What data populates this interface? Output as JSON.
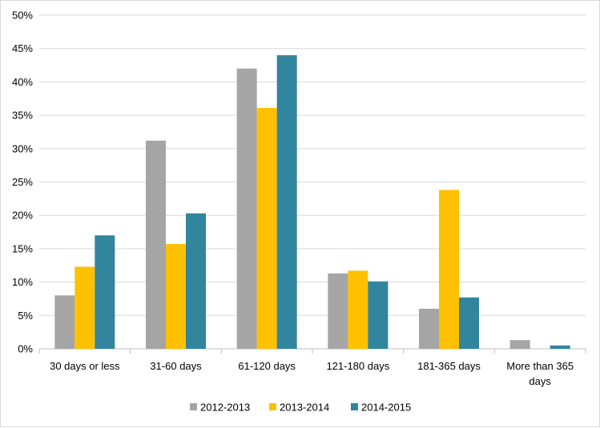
{
  "chart_data": {
    "type": "bar",
    "title": "",
    "xlabel": "",
    "ylabel": "",
    "categories": [
      "30 days or less",
      "31-60 days",
      "61-120 days",
      "121-180 days",
      "181-365 days",
      "More than 365 days"
    ],
    "category_lines": [
      [
        "30 days or less"
      ],
      [
        "31-60 days"
      ],
      [
        "61-120 days"
      ],
      [
        "121-180 days"
      ],
      [
        "181-365 days"
      ],
      [
        "More than 365",
        "days"
      ]
    ],
    "series": [
      {
        "name": "2012-2013",
        "color": "#a5a5a5",
        "values": [
          8.0,
          31.2,
          42.0,
          11.3,
          6.0,
          1.3
        ]
      },
      {
        "name": "2013-2014",
        "color": "#ffc000",
        "values": [
          12.3,
          15.7,
          36.1,
          11.7,
          23.8,
          0
        ]
      },
      {
        "name": "2014-2015",
        "color": "#31859c",
        "values": [
          17.0,
          20.3,
          44.0,
          10.1,
          7.7,
          0.5
        ]
      }
    ],
    "ylim": [
      0,
      50
    ],
    "yticks": [
      "0%",
      "5%",
      "10%",
      "15%",
      "20%",
      "25%",
      "30%",
      "35%",
      "40%",
      "45%",
      "50%"
    ],
    "grid": true,
    "legend_position": "bottom"
  }
}
